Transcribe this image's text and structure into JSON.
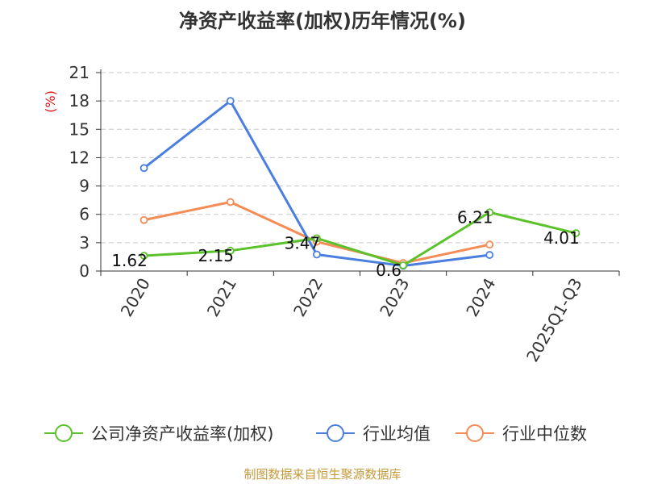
{
  "title": "净资产收益率(加权)历年情况(%)",
  "footer": "制图数据来自恒生聚源数据库",
  "chart_data": {
    "type": "line",
    "title": "净资产收益率(加权)历年情况(%)",
    "ylabel": "(%)",
    "ylim": [
      0,
      21
    ],
    "yticks": [
      0,
      3,
      6,
      9,
      12,
      15,
      18,
      21
    ],
    "grid": true,
    "legend_position": "bottom",
    "categories": [
      "2020",
      "2021",
      "2022",
      "2023",
      "2024",
      "2025Q1-Q3"
    ],
    "series": [
      {
        "name": "公司净资产收益率(加权)",
        "color": "#5cc22b",
        "values": [
          1.62,
          2.15,
          3.47,
          0.6,
          6.21,
          4.01
        ],
        "labels": [
          "1.62",
          "2.15",
          "3.47",
          "0.6",
          "6.21",
          "4.01"
        ]
      },
      {
        "name": "行业均值",
        "color": "#4a7fe0",
        "values": [
          10.9,
          18.0,
          1.75,
          0.55,
          1.7,
          null
        ]
      },
      {
        "name": "行业中位数",
        "color": "#f58b55",
        "values": [
          5.4,
          7.3,
          3.1,
          0.85,
          2.8,
          null
        ]
      }
    ]
  }
}
